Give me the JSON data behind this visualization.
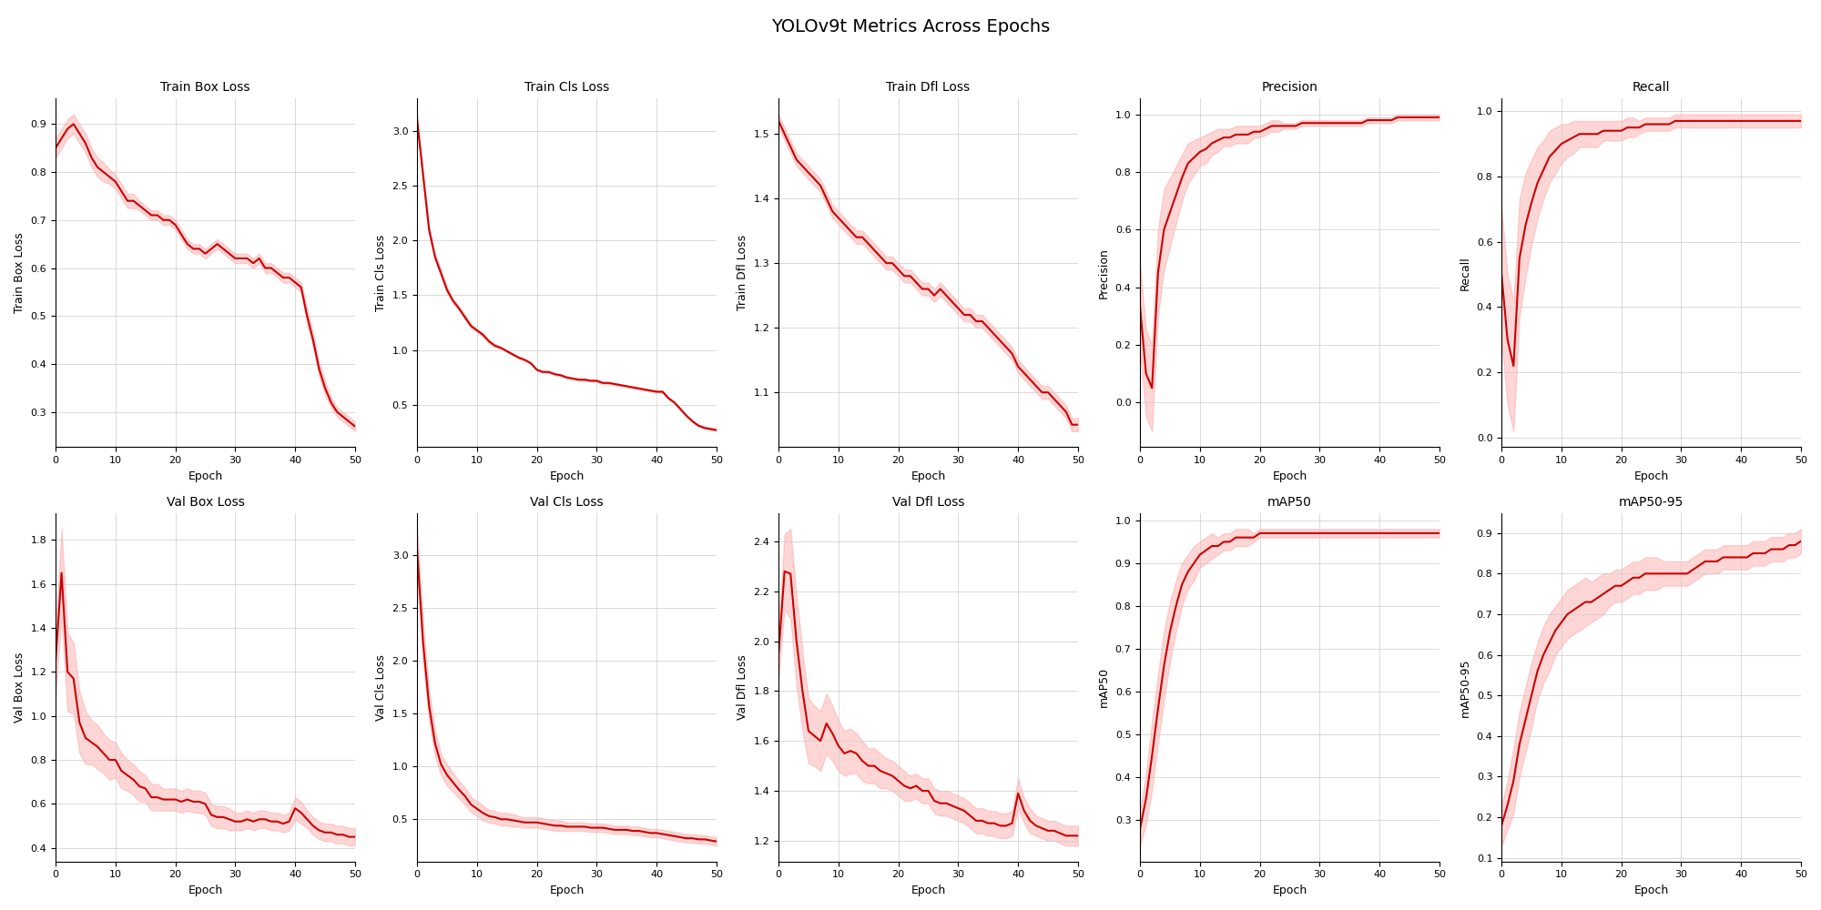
{
  "title": "YOLOv9t Metrics Across Epochs",
  "n_epochs": 51,
  "line_color": "#cc0000",
  "fill_color": "#ff9999",
  "fill_alpha": 0.4,
  "background_color": "#ffffff",
  "grid_color": "#cccccc",
  "subplots": [
    {
      "title": "Train Box Loss",
      "ylabel": "Train Box Loss",
      "xlabel": "Epoch",
      "mean": [
        0.85,
        0.87,
        0.89,
        0.9,
        0.88,
        0.86,
        0.83,
        0.81,
        0.8,
        0.79,
        0.78,
        0.76,
        0.74,
        0.74,
        0.73,
        0.72,
        0.71,
        0.71,
        0.7,
        0.7,
        0.69,
        0.67,
        0.65,
        0.64,
        0.64,
        0.63,
        0.64,
        0.65,
        0.64,
        0.63,
        0.62,
        0.62,
        0.62,
        0.61,
        0.62,
        0.6,
        0.6,
        0.59,
        0.58,
        0.58,
        0.57,
        0.56,
        0.5,
        0.45,
        0.39,
        0.35,
        0.32,
        0.3,
        0.29,
        0.28,
        0.27
      ],
      "std": [
        0.02,
        0.02,
        0.02,
        0.02,
        0.02,
        0.02,
        0.02,
        0.02,
        0.02,
        0.015,
        0.015,
        0.015,
        0.015,
        0.015,
        0.01,
        0.01,
        0.01,
        0.01,
        0.01,
        0.01,
        0.01,
        0.01,
        0.01,
        0.01,
        0.01,
        0.01,
        0.01,
        0.01,
        0.01,
        0.01,
        0.01,
        0.01,
        0.01,
        0.01,
        0.01,
        0.01,
        0.01,
        0.01,
        0.01,
        0.01,
        0.01,
        0.01,
        0.015,
        0.015,
        0.015,
        0.015,
        0.01,
        0.01,
        0.01,
        0.01,
        0.01
      ]
    },
    {
      "title": "Train Cls Loss",
      "ylabel": "Train Cls Loss",
      "xlabel": "Epoch",
      "mean": [
        3.1,
        2.6,
        2.1,
        1.85,
        1.7,
        1.55,
        1.45,
        1.38,
        1.3,
        1.22,
        1.18,
        1.14,
        1.08,
        1.04,
        1.02,
        0.99,
        0.96,
        0.93,
        0.91,
        0.88,
        0.82,
        0.8,
        0.8,
        0.78,
        0.77,
        0.75,
        0.74,
        0.73,
        0.73,
        0.72,
        0.72,
        0.7,
        0.7,
        0.69,
        0.68,
        0.67,
        0.66,
        0.65,
        0.64,
        0.63,
        0.62,
        0.62,
        0.56,
        0.52,
        0.46,
        0.4,
        0.35,
        0.31,
        0.29,
        0.28,
        0.27
      ],
      "std": [
        0.05,
        0.04,
        0.04,
        0.03,
        0.03,
        0.03,
        0.02,
        0.02,
        0.02,
        0.02,
        0.015,
        0.015,
        0.015,
        0.015,
        0.01,
        0.01,
        0.01,
        0.01,
        0.01,
        0.01,
        0.01,
        0.01,
        0.01,
        0.01,
        0.01,
        0.01,
        0.01,
        0.01,
        0.01,
        0.01,
        0.01,
        0.01,
        0.01,
        0.01,
        0.01,
        0.01,
        0.01,
        0.01,
        0.01,
        0.01,
        0.01,
        0.01,
        0.01,
        0.01,
        0.01,
        0.01,
        0.01,
        0.01,
        0.01,
        0.01,
        0.01
      ]
    },
    {
      "title": "Train Dfl Loss",
      "ylabel": "Train Dfl Loss",
      "xlabel": "Epoch",
      "mean": [
        1.52,
        1.5,
        1.48,
        1.46,
        1.45,
        1.44,
        1.43,
        1.42,
        1.4,
        1.38,
        1.37,
        1.36,
        1.35,
        1.34,
        1.34,
        1.33,
        1.32,
        1.31,
        1.3,
        1.3,
        1.29,
        1.28,
        1.28,
        1.27,
        1.26,
        1.26,
        1.25,
        1.26,
        1.25,
        1.24,
        1.23,
        1.22,
        1.22,
        1.21,
        1.21,
        1.2,
        1.19,
        1.18,
        1.17,
        1.16,
        1.14,
        1.13,
        1.12,
        1.11,
        1.1,
        1.1,
        1.09,
        1.08,
        1.07,
        1.05,
        1.05
      ],
      "std": [
        0.01,
        0.01,
        0.01,
        0.01,
        0.01,
        0.01,
        0.01,
        0.01,
        0.01,
        0.01,
        0.01,
        0.01,
        0.01,
        0.01,
        0.01,
        0.01,
        0.01,
        0.01,
        0.01,
        0.01,
        0.01,
        0.01,
        0.01,
        0.01,
        0.01,
        0.01,
        0.01,
        0.01,
        0.01,
        0.01,
        0.01,
        0.01,
        0.01,
        0.01,
        0.01,
        0.01,
        0.01,
        0.01,
        0.01,
        0.01,
        0.01,
        0.01,
        0.01,
        0.01,
        0.01,
        0.01,
        0.01,
        0.01,
        0.01,
        0.01,
        0.01
      ]
    },
    {
      "title": "Precision",
      "ylabel": "Precision",
      "xlabel": "Epoch",
      "mean": [
        0.33,
        0.1,
        0.05,
        0.45,
        0.6,
        0.66,
        0.72,
        0.78,
        0.83,
        0.85,
        0.87,
        0.88,
        0.9,
        0.91,
        0.92,
        0.92,
        0.93,
        0.93,
        0.93,
        0.94,
        0.94,
        0.95,
        0.96,
        0.96,
        0.96,
        0.96,
        0.96,
        0.97,
        0.97,
        0.97,
        0.97,
        0.97,
        0.97,
        0.97,
        0.97,
        0.97,
        0.97,
        0.97,
        0.98,
        0.98,
        0.98,
        0.98,
        0.98,
        0.99,
        0.99,
        0.99,
        0.99,
        0.99,
        0.99,
        0.99,
        0.99
      ],
      "std": [
        0.15,
        0.15,
        0.15,
        0.15,
        0.14,
        0.12,
        0.1,
        0.08,
        0.07,
        0.06,
        0.05,
        0.05,
        0.04,
        0.04,
        0.03,
        0.03,
        0.03,
        0.03,
        0.03,
        0.02,
        0.02,
        0.02,
        0.02,
        0.02,
        0.01,
        0.01,
        0.01,
        0.01,
        0.01,
        0.01,
        0.01,
        0.01,
        0.01,
        0.01,
        0.01,
        0.01,
        0.01,
        0.01,
        0.01,
        0.01,
        0.01,
        0.01,
        0.01,
        0.01,
        0.01,
        0.01,
        0.01,
        0.01,
        0.01,
        0.01,
        0.01
      ]
    },
    {
      "title": "Recall",
      "ylabel": "Recall",
      "xlabel": "Epoch",
      "mean": [
        0.5,
        0.3,
        0.22,
        0.55,
        0.65,
        0.72,
        0.78,
        0.82,
        0.86,
        0.88,
        0.9,
        0.91,
        0.92,
        0.93,
        0.93,
        0.93,
        0.93,
        0.94,
        0.94,
        0.94,
        0.94,
        0.95,
        0.95,
        0.95,
        0.96,
        0.96,
        0.96,
        0.96,
        0.96,
        0.97,
        0.97,
        0.97,
        0.97,
        0.97,
        0.97,
        0.97,
        0.97,
        0.97,
        0.97,
        0.97,
        0.97,
        0.97,
        0.97,
        0.97,
        0.97,
        0.97,
        0.97,
        0.97,
        0.97,
        0.97,
        0.97
      ],
      "std": [
        0.2,
        0.2,
        0.2,
        0.18,
        0.16,
        0.13,
        0.11,
        0.09,
        0.08,
        0.07,
        0.06,
        0.05,
        0.05,
        0.04,
        0.04,
        0.04,
        0.04,
        0.03,
        0.03,
        0.03,
        0.03,
        0.03,
        0.03,
        0.02,
        0.02,
        0.02,
        0.02,
        0.02,
        0.02,
        0.02,
        0.02,
        0.02,
        0.02,
        0.02,
        0.02,
        0.02,
        0.02,
        0.02,
        0.02,
        0.02,
        0.02,
        0.02,
        0.02,
        0.02,
        0.02,
        0.02,
        0.02,
        0.02,
        0.02,
        0.02,
        0.02
      ]
    },
    {
      "title": "Val Box Loss",
      "ylabel": "Val Box Loss",
      "xlabel": "Epoch",
      "mean": [
        1.25,
        1.65,
        1.2,
        1.17,
        0.97,
        0.9,
        0.88,
        0.86,
        0.83,
        0.8,
        0.8,
        0.75,
        0.73,
        0.71,
        0.68,
        0.67,
        0.63,
        0.63,
        0.62,
        0.62,
        0.62,
        0.61,
        0.62,
        0.61,
        0.61,
        0.6,
        0.55,
        0.54,
        0.54,
        0.53,
        0.52,
        0.52,
        0.53,
        0.52,
        0.53,
        0.53,
        0.52,
        0.52,
        0.51,
        0.52,
        0.58,
        0.56,
        0.53,
        0.5,
        0.48,
        0.47,
        0.47,
        0.46,
        0.46,
        0.45,
        0.45
      ],
      "std": [
        0.15,
        0.2,
        0.18,
        0.16,
        0.14,
        0.12,
        0.1,
        0.1,
        0.09,
        0.09,
        0.08,
        0.08,
        0.07,
        0.07,
        0.07,
        0.06,
        0.06,
        0.06,
        0.05,
        0.05,
        0.05,
        0.05,
        0.05,
        0.05,
        0.05,
        0.05,
        0.05,
        0.05,
        0.05,
        0.05,
        0.04,
        0.04,
        0.04,
        0.04,
        0.04,
        0.04,
        0.04,
        0.04,
        0.04,
        0.04,
        0.05,
        0.05,
        0.04,
        0.04,
        0.04,
        0.04,
        0.04,
        0.04,
        0.04,
        0.04,
        0.04
      ]
    },
    {
      "title": "Val Cls Loss",
      "ylabel": "Val Cls Loss",
      "xlabel": "Epoch",
      "mean": [
        3.05,
        2.18,
        1.58,
        1.22,
        1.02,
        0.92,
        0.85,
        0.78,
        0.72,
        0.64,
        0.6,
        0.56,
        0.53,
        0.52,
        0.5,
        0.5,
        0.49,
        0.48,
        0.47,
        0.47,
        0.47,
        0.46,
        0.45,
        0.44,
        0.44,
        0.43,
        0.43,
        0.43,
        0.43,
        0.42,
        0.42,
        0.42,
        0.41,
        0.4,
        0.4,
        0.4,
        0.39,
        0.39,
        0.38,
        0.37,
        0.37,
        0.36,
        0.35,
        0.34,
        0.33,
        0.32,
        0.32,
        0.31,
        0.31,
        0.3,
        0.29
      ],
      "std": [
        0.2,
        0.18,
        0.15,
        0.12,
        0.1,
        0.1,
        0.09,
        0.08,
        0.08,
        0.07,
        0.07,
        0.07,
        0.06,
        0.06,
        0.06,
        0.06,
        0.06,
        0.05,
        0.05,
        0.05,
        0.05,
        0.05,
        0.05,
        0.05,
        0.05,
        0.04,
        0.04,
        0.04,
        0.04,
        0.04,
        0.04,
        0.04,
        0.04,
        0.04,
        0.04,
        0.04,
        0.04,
        0.04,
        0.04,
        0.04,
        0.04,
        0.04,
        0.04,
        0.04,
        0.04,
        0.04,
        0.04,
        0.04,
        0.04,
        0.04,
        0.04
      ]
    },
    {
      "title": "Val Dfl Loss",
      "ylabel": "Val Dfl Loss",
      "xlabel": "Epoch",
      "mean": [
        1.95,
        2.28,
        2.27,
        2.0,
        1.8,
        1.64,
        1.62,
        1.6,
        1.67,
        1.63,
        1.58,
        1.55,
        1.56,
        1.55,
        1.52,
        1.5,
        1.5,
        1.48,
        1.47,
        1.46,
        1.44,
        1.42,
        1.41,
        1.42,
        1.4,
        1.4,
        1.36,
        1.35,
        1.35,
        1.34,
        1.33,
        1.32,
        1.3,
        1.28,
        1.28,
        1.27,
        1.27,
        1.26,
        1.26,
        1.27,
        1.39,
        1.32,
        1.28,
        1.26,
        1.25,
        1.24,
        1.24,
        1.23,
        1.22,
        1.22,
        1.22
      ],
      "std": [
        0.1,
        0.15,
        0.18,
        0.18,
        0.16,
        0.13,
        0.12,
        0.12,
        0.12,
        0.11,
        0.1,
        0.09,
        0.09,
        0.08,
        0.08,
        0.07,
        0.07,
        0.07,
        0.06,
        0.06,
        0.06,
        0.06,
        0.05,
        0.05,
        0.05,
        0.05,
        0.05,
        0.05,
        0.05,
        0.05,
        0.05,
        0.05,
        0.05,
        0.05,
        0.05,
        0.05,
        0.05,
        0.05,
        0.05,
        0.05,
        0.06,
        0.05,
        0.05,
        0.04,
        0.04,
        0.04,
        0.04,
        0.04,
        0.04,
        0.04,
        0.04
      ]
    },
    {
      "title": "mAP50",
      "ylabel": "mAP50",
      "xlabel": "Epoch",
      "mean": [
        0.28,
        0.35,
        0.45,
        0.56,
        0.66,
        0.74,
        0.8,
        0.85,
        0.88,
        0.9,
        0.92,
        0.93,
        0.94,
        0.94,
        0.95,
        0.95,
        0.96,
        0.96,
        0.96,
        0.96,
        0.97,
        0.97,
        0.97,
        0.97,
        0.97,
        0.97,
        0.97,
        0.97,
        0.97,
        0.97,
        0.97,
        0.97,
        0.97,
        0.97,
        0.97,
        0.97,
        0.97,
        0.97,
        0.97,
        0.97,
        0.97,
        0.97,
        0.97,
        0.97,
        0.97,
        0.97,
        0.97,
        0.97,
        0.97,
        0.97,
        0.97
      ],
      "std": [
        0.04,
        0.06,
        0.08,
        0.08,
        0.08,
        0.07,
        0.06,
        0.05,
        0.04,
        0.04,
        0.03,
        0.03,
        0.03,
        0.02,
        0.02,
        0.02,
        0.02,
        0.02,
        0.02,
        0.01,
        0.01,
        0.01,
        0.01,
        0.01,
        0.01,
        0.01,
        0.01,
        0.01,
        0.01,
        0.01,
        0.01,
        0.01,
        0.01,
        0.01,
        0.01,
        0.01,
        0.01,
        0.01,
        0.01,
        0.01,
        0.01,
        0.01,
        0.01,
        0.01,
        0.01,
        0.01,
        0.01,
        0.01,
        0.01,
        0.01,
        0.01
      ]
    },
    {
      "title": "mAP50-95",
      "ylabel": "mAP50-95",
      "xlabel": "Epoch",
      "mean": [
        0.18,
        0.23,
        0.29,
        0.38,
        0.44,
        0.5,
        0.56,
        0.6,
        0.63,
        0.66,
        0.68,
        0.7,
        0.71,
        0.72,
        0.73,
        0.73,
        0.74,
        0.75,
        0.76,
        0.77,
        0.77,
        0.78,
        0.79,
        0.79,
        0.8,
        0.8,
        0.8,
        0.8,
        0.8,
        0.8,
        0.8,
        0.8,
        0.81,
        0.82,
        0.83,
        0.83,
        0.83,
        0.84,
        0.84,
        0.84,
        0.84,
        0.84,
        0.85,
        0.85,
        0.85,
        0.86,
        0.86,
        0.86,
        0.87,
        0.87,
        0.88
      ],
      "std": [
        0.05,
        0.06,
        0.08,
        0.08,
        0.08,
        0.08,
        0.07,
        0.07,
        0.07,
        0.06,
        0.06,
        0.06,
        0.06,
        0.06,
        0.06,
        0.05,
        0.05,
        0.05,
        0.04,
        0.04,
        0.04,
        0.04,
        0.04,
        0.04,
        0.04,
        0.04,
        0.04,
        0.03,
        0.03,
        0.03,
        0.03,
        0.03,
        0.03,
        0.03,
        0.03,
        0.03,
        0.03,
        0.03,
        0.03,
        0.03,
        0.03,
        0.03,
        0.03,
        0.03,
        0.03,
        0.03,
        0.03,
        0.03,
        0.03,
        0.03,
        0.03
      ]
    }
  ]
}
